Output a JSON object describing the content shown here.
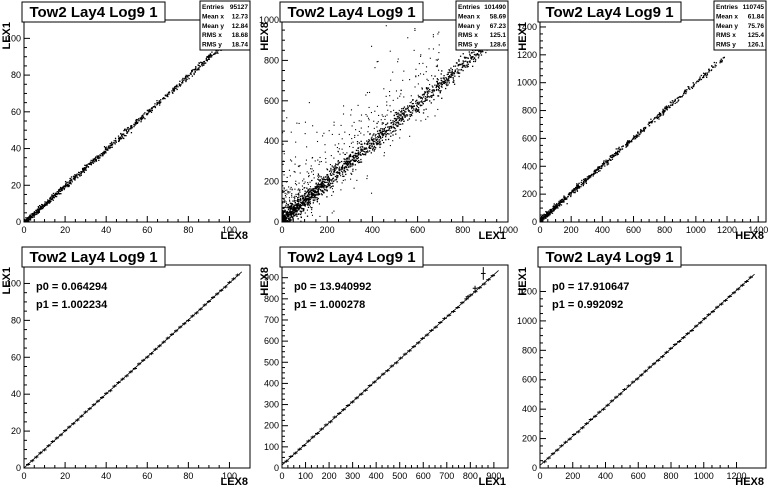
{
  "chart_data": [
    {
      "type": "scatter",
      "title": "Tow2 Lay4 Log9 1",
      "xlabel": "LEX8",
      "ylabel": "LEX1",
      "xlim": [
        0,
        110
      ],
      "ylim": [
        0,
        110
      ],
      "xticks": [
        0,
        20,
        40,
        60,
        80,
        100
      ],
      "yticks": [
        0,
        20,
        40,
        60,
        80,
        100
      ],
      "stats": [
        {
          "label": "Entries",
          "value": "95127"
        },
        {
          "label": "Mean x",
          "value": "12.73"
        },
        {
          "label": "Mean y",
          "value": "12.84"
        },
        {
          "label": "RMS x",
          "value": "18.68"
        },
        {
          "label": "RMS y",
          "value": "18.74"
        }
      ],
      "trend": {
        "slope": 1.0,
        "intercept": 0.0,
        "x_range": [
          0,
          108
        ],
        "noise": 0.8,
        "n": 900,
        "outliers": 0
      }
    },
    {
      "type": "scatter",
      "title": "Tow2 Lay4 Log9 1",
      "xlabel": "LEX1",
      "ylabel": "HEX8",
      "xlim": [
        0,
        1000
      ],
      "ylim": [
        0,
        1000
      ],
      "xticks": [
        0,
        200,
        400,
        600,
        800,
        1000
      ],
      "yticks": [
        0,
        200,
        400,
        600,
        800,
        1000
      ],
      "stats": [
        {
          "label": "Entries",
          "value": "101490"
        },
        {
          "label": "Mean x",
          "value": "58.69"
        },
        {
          "label": "Mean y",
          "value": "67.23"
        },
        {
          "label": "RMS x",
          "value": "125.1"
        },
        {
          "label": "RMS y",
          "value": "128.6"
        }
      ],
      "trend": {
        "slope": 0.96,
        "intercept": 14,
        "x_range": [
          0,
          960
        ],
        "noise": 22,
        "n": 1500,
        "outliers": 500
      }
    },
    {
      "type": "scatter",
      "title": "Tow2 Lay4 Log9 1",
      "xlabel": "HEX8",
      "ylabel": "HEX1",
      "xlim": [
        0,
        1450
      ],
      "ylim": [
        0,
        1450
      ],
      "xticks": [
        0,
        200,
        400,
        600,
        800,
        1000,
        1200,
        1400
      ],
      "yticks": [
        0,
        200,
        400,
        600,
        800,
        1000,
        1200,
        1400
      ],
      "stats": [
        {
          "label": "Entries",
          "value": "110745"
        },
        {
          "label": "Mean x",
          "value": "61.84"
        },
        {
          "label": "Mean y",
          "value": "75.76"
        },
        {
          "label": "RMS x",
          "value": "125.4"
        },
        {
          "label": "RMS y",
          "value": "126.1"
        }
      ],
      "trend": {
        "slope": 0.99,
        "intercept": 18,
        "x_range": [
          0,
          1180
        ],
        "noise": 10,
        "n": 700,
        "outliers": 0
      }
    },
    {
      "type": "line",
      "title": "Tow2 Lay4 Log9 1",
      "xlabel": "LEX8",
      "ylabel": "LEX1",
      "xlim": [
        0,
        110
      ],
      "ylim": [
        0,
        110
      ],
      "xticks": [
        0,
        20,
        40,
        60,
        80,
        100
      ],
      "yticks": [
        0,
        20,
        40,
        60,
        80,
        100
      ],
      "fit": {
        "p0_label": "p0 = 0.064294",
        "p1_label": "p1 = 1.002234",
        "p0": 0.064294,
        "p1": 1.002234,
        "x_range": [
          0,
          106
        ]
      },
      "profile": {
        "x_start": 1,
        "x_end": 105,
        "bins": 52,
        "err_bins": []
      }
    },
    {
      "type": "line",
      "title": "Tow2 Lay4 Log9 1",
      "xlabel": "LEX1",
      "ylabel": "HEX8",
      "xlim": [
        0,
        960
      ],
      "ylim": [
        0,
        960
      ],
      "xticks": [
        0,
        100,
        200,
        300,
        400,
        500,
        600,
        700,
        800,
        900
      ],
      "yticks": [
        0,
        100,
        200,
        300,
        400,
        500,
        600,
        700,
        800,
        900
      ],
      "fit": {
        "p0_label": "p0 = 13.940992",
        "p1_label": "p1 = 1.000278",
        "p0": 13.940992,
        "p1": 1.000278,
        "x_range": [
          0,
          920
        ]
      },
      "profile": {
        "x_start": 10,
        "x_end": 905,
        "bins": 48,
        "err_bins": [
          {
            "x": 855,
            "y": 920,
            "err": 30
          },
          {
            "x": 820,
            "y": 850,
            "err": 12
          },
          {
            "x": 790,
            "y": 810,
            "err": 8
          }
        ]
      }
    },
    {
      "type": "line",
      "title": "Tow2 Lay4 Log9 1",
      "xlabel": "HEX8",
      "ylabel": "HEX1",
      "xlim": [
        0,
        1380
      ],
      "ylim": [
        0,
        1380
      ],
      "xticks": [
        0,
        200,
        400,
        600,
        800,
        1000,
        1200
      ],
      "yticks": [
        0,
        200,
        400,
        600,
        800,
        1000,
        1200
      ],
      "fit": {
        "p0_label": "p0 = 17.910647",
        "p1_label": "p1 = 0.992092",
        "p0": 17.910647,
        "p1": 0.992092,
        "x_range": [
          0,
          1310
        ]
      },
      "profile": {
        "x_start": 15,
        "x_end": 1300,
        "bins": 50,
        "err_bins": []
      }
    }
  ]
}
